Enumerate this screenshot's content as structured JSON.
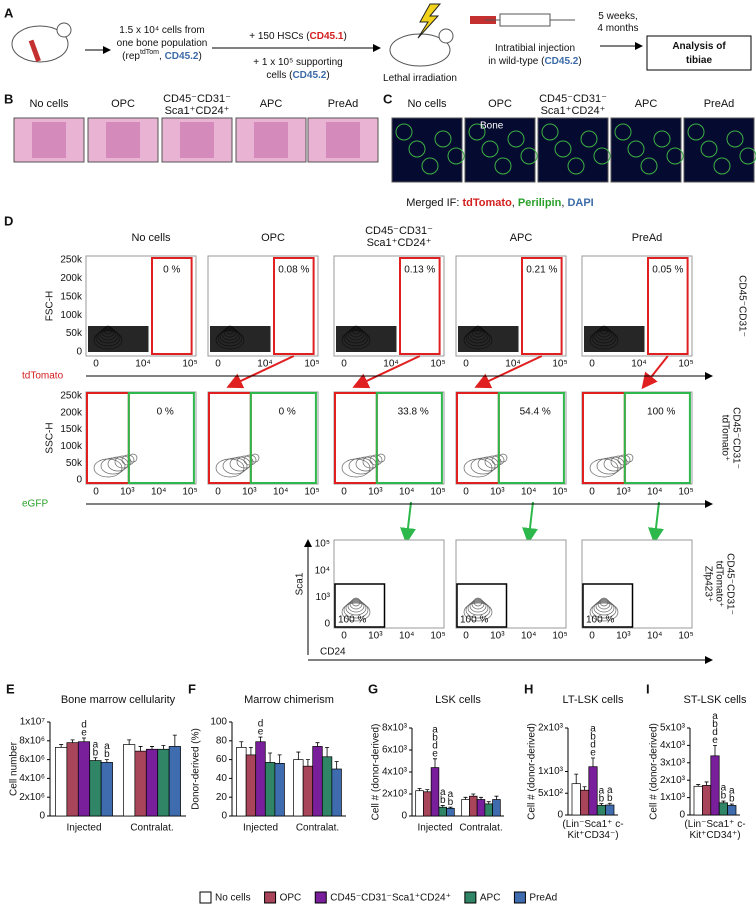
{
  "panel_a": {
    "label": "A",
    "graft": [
      [
        "1.5 x 10⁴ cells from"
      ],
      [
        "one bone population"
      ],
      [
        "(rep",
        {
          "text": "tdTom",
          "sup": true
        },
        ", ",
        {
          "text": "CD45.2",
          "color": "#3d6ba8"
        },
        ")"
      ]
    ],
    "hscs": [
      [
        "+ 150 HSCs (",
        {
          "text": "CD45.1",
          "color": "#d3201f"
        },
        ")"
      ]
    ],
    "support": [
      [
        "+ 1 x 10⁵ supporting"
      ],
      [
        "cells (",
        {
          "text": "CD45.2",
          "color": "#3d6ba8"
        },
        ")"
      ]
    ],
    "irradiation": [
      [
        "Lethal irradiation"
      ]
    ],
    "injection": [
      [
        "Intratibial injection"
      ],
      [
        "in wild-type (",
        {
          "text": "CD45.2",
          "color": "#3d6ba8"
        },
        ")"
      ]
    ],
    "time": [
      [
        "5 weeks,"
      ],
      [
        "4 months"
      ]
    ],
    "analysis": [
      [
        "Analysis of"
      ],
      [
        "tibiae"
      ]
    ]
  },
  "panel_b": {
    "label": "B",
    "titles": [
      [
        "No cells"
      ],
      [
        "OPC"
      ],
      [
        "CD45⁻CD31⁻",
        "Sca1⁺CD24⁺"
      ],
      [
        "APC"
      ],
      [
        "PreAd"
      ]
    ]
  },
  "panel_c": {
    "label": "C",
    "titles": [
      [
        "No cells"
      ],
      [
        "OPC"
      ],
      [
        "CD45⁻CD31⁻",
        "Sca1⁺CD24⁺"
      ],
      [
        "APC"
      ],
      [
        "PreAd"
      ]
    ],
    "bone": "Bone",
    "caption": [
      [
        "Merged IF: ",
        {
          "text": "tdTomato",
          "color": "#d3201f"
        },
        ", ",
        {
          "text": "Perilipin",
          "color": "#2aa02a"
        },
        ", ",
        {
          "text": "DAPI",
          "color": "#3d6ba8"
        }
      ]
    ]
  },
  "panel_d": {
    "label": "D",
    "titles": [
      [
        "No cells"
      ],
      [
        "OPC"
      ],
      [
        "CD45⁻CD31⁻",
        "Sca1⁺CD24⁺"
      ],
      [
        "APC"
      ],
      [
        "PreAd"
      ]
    ],
    "rows": [
      {
        "y_label": "FSC-H",
        "x_label": "tdTomato",
        "x_label_color": "#d3201f",
        "row_label": [
          "CD45⁻CD31⁻"
        ],
        "y_ticks": [
          "0",
          "50k",
          "100k",
          "150k",
          "200k",
          "250k"
        ],
        "x_ticks": [
          "0",
          "10⁴",
          "10⁵"
        ],
        "percentages": [
          "0 %",
          "0.08 %",
          "0.13 %",
          "0.21 %",
          "0.05 %"
        ]
      },
      {
        "y_label": "SSC-H",
        "x_label": "eGFP",
        "x_label_color": "#2aa02a",
        "row_label": [
          "CD45⁻CD31⁻",
          "tdTomato⁺"
        ],
        "y_ticks": [
          "0",
          "50k",
          "100k",
          "150k",
          "200k",
          "250k"
        ],
        "x_ticks": [
          "0",
          "10³",
          "10⁴",
          "10⁵"
        ],
        "percentages": [
          "0 %",
          "0 %",
          "33.8 %",
          "54.4 %",
          "100 %"
        ]
      },
      {
        "y_label": "Sca1",
        "x_label": "CD24",
        "row_label": [
          "CD45⁻CD31⁻",
          "tdTomato⁺",
          "Zfp423⁺"
        ],
        "y_ticks": [
          "0",
          "10³",
          "10⁴",
          "10⁵"
        ],
        "x_ticks": [
          "0",
          "10³",
          "10⁴",
          "10⁵"
        ],
        "percentages": [
          "100 %",
          "100 %",
          "100 %"
        ]
      }
    ]
  },
  "legend": [
    {
      "name": "No cells",
      "color": "#ffffff"
    },
    {
      "name": "OPC",
      "color": "#a8455a"
    },
    {
      "name": "CD45⁻CD31⁻Sca1⁺CD24⁺",
      "color": "#7a1f9c"
    },
    {
      "name": "APC",
      "color": "#2f8566"
    },
    {
      "name": "PreAd",
      "color": "#3f6cae"
    }
  ],
  "chart_data": [
    {
      "type": "bar",
      "label": "E",
      "title": "Bone marrow cellularity",
      "y_label": "Cell number",
      "categories": [
        "Injected",
        "Contralat."
      ],
      "ylim": [
        0,
        10000000
      ],
      "yticks": [
        0,
        {
          "value": 2000000,
          "label": "2x10⁶"
        },
        {
          "value": 4000000,
          "label": "4x10⁶"
        },
        {
          "value": 6000000,
          "label": "6x10⁶"
        },
        {
          "value": 8000000,
          "label": "8x10⁶"
        },
        {
          "value": 10000000,
          "label": "1x10⁷"
        }
      ],
      "series": [
        {
          "values": [
            7300000,
            7600000
          ],
          "errors": [
            300000,
            500000
          ],
          "letters": [
            null,
            null
          ]
        },
        {
          "values": [
            7800000,
            6900000
          ],
          "errors": [
            300000,
            500000
          ],
          "letters": [
            null,
            null
          ]
        },
        {
          "values": [
            7900000,
            7100000
          ],
          "errors": [
            400000,
            300000
          ],
          "letters": [
            [
              "d",
              "e"
            ],
            null
          ]
        },
        {
          "values": [
            5900000,
            7100000
          ],
          "errors": [
            300000,
            400000
          ],
          "letters": [
            [
              "a",
              "b"
            ],
            null
          ]
        },
        {
          "values": [
            5700000,
            7400000
          ],
          "errors": [
            300000,
            1200000
          ],
          "letters": [
            [
              "a",
              "b"
            ],
            null
          ]
        }
      ]
    },
    {
      "type": "bar",
      "label": "F",
      "title": "Marrow chimerism",
      "y_label": "Donor-derived (%)",
      "categories": [
        "Injected",
        "Contralat."
      ],
      "ylim": [
        0,
        100
      ],
      "yticks": [
        0,
        20,
        40,
        60,
        80,
        100
      ],
      "series": [
        {
          "values": [
            73,
            60
          ],
          "errors": [
            6,
            8
          ],
          "letters": [
            null,
            null
          ]
        },
        {
          "values": [
            65,
            53
          ],
          "errors": [
            8,
            7
          ],
          "letters": [
            null,
            null
          ]
        },
        {
          "values": [
            79,
            74
          ],
          "errors": [
            5,
            4
          ],
          "letters": [
            [
              "d",
              "e"
            ],
            null
          ]
        },
        {
          "values": [
            57,
            63
          ],
          "errors": [
            10,
            10
          ],
          "letters": [
            null,
            null
          ]
        },
        {
          "values": [
            56,
            50
          ],
          "errors": [
            9,
            8
          ],
          "letters": [
            null,
            null
          ]
        }
      ]
    },
    {
      "type": "bar",
      "label": "G",
      "title": "LSK cells",
      "y_label": "Cell # (donor-derived)",
      "categories": [
        "Injected",
        "Contralat."
      ],
      "ylim": [
        0,
        8000
      ],
      "yticks": [
        0,
        {
          "value": 2000,
          "label": "2x10³"
        },
        {
          "value": 4000,
          "label": "4x10³"
        },
        {
          "value": 6000,
          "label": "6x10³"
        },
        {
          "value": 8000,
          "label": "8x10³"
        }
      ],
      "series": [
        {
          "values": [
            2300,
            1500
          ],
          "errors": [
            200,
            200
          ],
          "letters": [
            null,
            null
          ]
        },
        {
          "values": [
            2200,
            1800
          ],
          "errors": [
            200,
            200
          ],
          "letters": [
            null,
            null
          ]
        },
        {
          "values": [
            4400,
            1500
          ],
          "errors": [
            800,
            200
          ],
          "letters": [
            [
              "a",
              "b",
              "d",
              "e"
            ],
            null
          ]
        },
        {
          "values": [
            800,
            1100
          ],
          "errors": [
            150,
            200
          ],
          "letters": [
            [
              "a",
              "b"
            ],
            null
          ]
        },
        {
          "values": [
            700,
            1500
          ],
          "errors": [
            100,
            300
          ],
          "letters": [
            [
              "a",
              "b"
            ],
            null
          ]
        }
      ]
    },
    {
      "type": "bar",
      "label": "H",
      "title": "LT-LSK cells",
      "y_label": "Cell # (donor-derived)",
      "categories": [
        "(Lin⁻Sca1⁺ c-Kit⁺CD34⁻)"
      ],
      "ylim": [
        0,
        2000
      ],
      "yticks": [
        0,
        {
          "value": 500,
          "label": "5x10²"
        },
        {
          "value": 1000,
          "label": "1x10³"
        },
        {
          "value": 2000,
          "label": "2x10³"
        }
      ],
      "series": [
        {
          "values": [
            720
          ],
          "errors": [
            220
          ],
          "letters": [
            null
          ]
        },
        {
          "values": [
            570
          ],
          "errors": [
            80
          ],
          "letters": [
            null
          ]
        },
        {
          "values": [
            1110
          ],
          "errors": [
            200
          ],
          "letters": [
            [
              "a",
              "b",
              "d",
              "e"
            ]
          ]
        },
        {
          "values": [
            220
          ],
          "errors": [
            40
          ],
          "letters": [
            [
              "a",
              "b"
            ]
          ]
        },
        {
          "values": [
            230
          ],
          "errors": [
            40
          ],
          "letters": [
            [
              "a",
              "b"
            ]
          ]
        }
      ]
    },
    {
      "type": "bar",
      "label": "I",
      "title": "ST-LSK cells",
      "y_label": "Cell # (donor-derived)",
      "categories": [
        "(Lin⁻Sca1⁺ c-Kit⁺CD34⁺)"
      ],
      "ylim": [
        0,
        5000
      ],
      "yticks": [
        0,
        {
          "value": 1000,
          "label": "1x10³"
        },
        {
          "value": 2000,
          "label": "2x10³"
        },
        {
          "value": 3000,
          "label": "3x10³"
        },
        {
          "value": 4000,
          "label": "4x10³"
        },
        {
          "value": 5000,
          "label": "5x10³"
        }
      ],
      "series": [
        {
          "values": [
            1650
          ],
          "errors": [
            100
          ],
          "letters": [
            null
          ]
        },
        {
          "values": [
            1700
          ],
          "errors": [
            200
          ],
          "letters": [
            null
          ]
        },
        {
          "values": [
            3400
          ],
          "errors": [
            600
          ],
          "letters": [
            [
              "a",
              "b",
              "d",
              "e"
            ]
          ]
        },
        {
          "values": [
            700
          ],
          "errors": [
            100
          ],
          "letters": [
            [
              "a",
              "b"
            ]
          ]
        },
        {
          "values": [
            550
          ],
          "errors": [
            80
          ],
          "letters": [
            [
              "a",
              "b"
            ]
          ]
        }
      ]
    }
  ]
}
